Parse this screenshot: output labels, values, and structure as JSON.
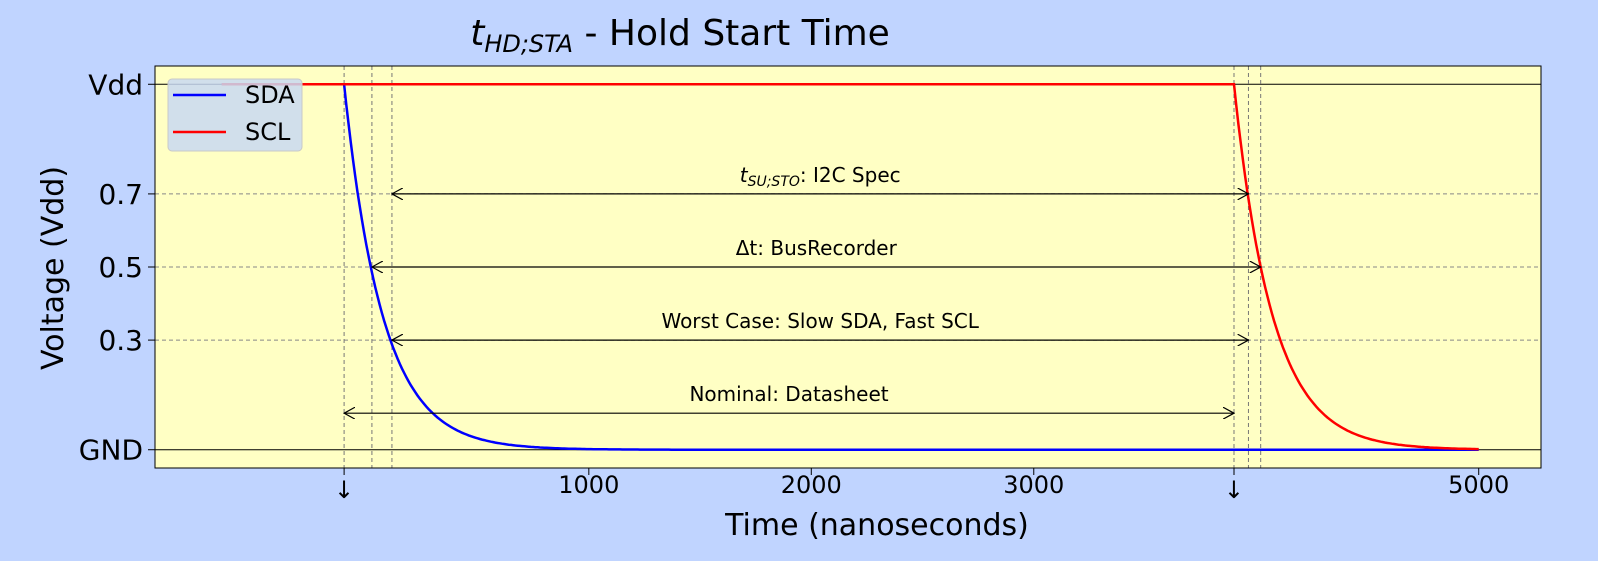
{
  "chart_data": {
    "type": "line",
    "title": {
      "symbol": "t",
      "subscript": "HD;STA",
      "text": " - Hold Start Time"
    },
    "xlabel": "Time (nanoseconds)",
    "ylabel": "Voltage (Vdd)",
    "xlim": [
      -950,
      5280
    ],
    "ylim": [
      -0.05,
      1.05
    ],
    "xticks": [
      {
        "value": -100,
        "label": "↓"
      },
      {
        "value": 1000,
        "label": "1000"
      },
      {
        "value": 2000,
        "label": "2000"
      },
      {
        "value": 3000,
        "label": "3000"
      },
      {
        "value": 3900,
        "label": "↓"
      },
      {
        "value": 5000,
        "label": "5000"
      }
    ],
    "yticks": [
      {
        "value": 0,
        "label": "GND"
      },
      {
        "value": 0.3,
        "label": "0.3"
      },
      {
        "value": 0.5,
        "label": "0.5"
      },
      {
        "value": 0.7,
        "label": "0.7"
      },
      {
        "value": 1,
        "label": "Vdd"
      }
    ],
    "plot_background": "#ffffc4",
    "page_background": "#c0d4ff",
    "grid": "dashed at y ticks",
    "series": [
      {
        "name": "SDA",
        "color": "#0000ff",
        "high_from": -650,
        "edge_start": -100,
        "tau": 173,
        "end": 5000
      },
      {
        "name": "SCL",
        "color": "#ff0000",
        "high_from": -650,
        "edge_start": 3900,
        "tau": 173,
        "end": 5000
      }
    ],
    "vertical_lines": [
      -100,
      25,
      115,
      3900,
      3965,
      4020
    ],
    "annotations": [
      {
        "label_symbol": "t",
        "label_sub": "SU;STO",
        "label_text": ": I2C Spec",
        "y": 0.7,
        "x_start": 115,
        "x_end": 3965
      },
      {
        "label_symbol": "",
        "label_sub": "",
        "label_text": "Δt: BusRecorder",
        "y": 0.5,
        "x_start": 25,
        "x_end": 4020
      },
      {
        "label_symbol": "",
        "label_sub": "",
        "label_text": "Worst Case: Slow SDA, Fast SCL",
        "y": 0.3,
        "x_start": 115,
        "x_end": 3965
      },
      {
        "label_symbol": "",
        "label_sub": "",
        "label_text": "Nominal: Datasheet",
        "y": 0.1,
        "x_start": -100,
        "x_end": 3900
      }
    ],
    "legend": {
      "position": "top-left",
      "entries": [
        "SDA",
        "SCL"
      ]
    }
  }
}
